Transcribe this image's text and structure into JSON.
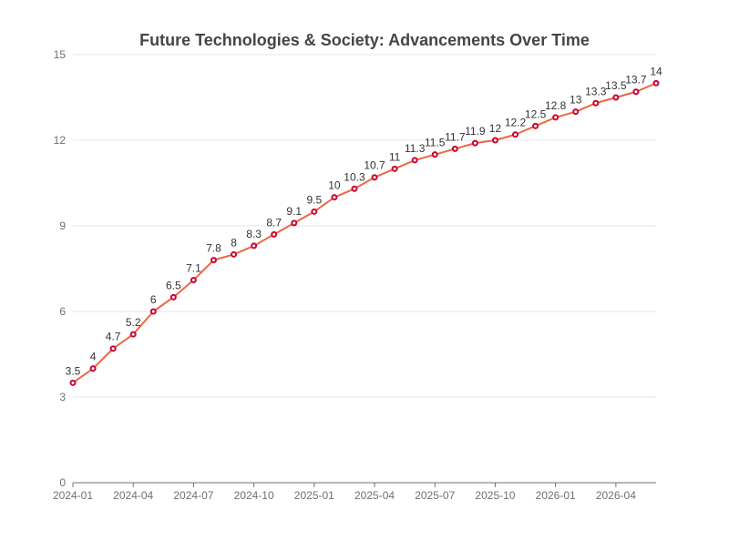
{
  "chart_data": {
    "type": "line",
    "title": "Future Technologies & Society: Advancements Over Time",
    "xlabel": "",
    "ylabel": "",
    "x": [
      "2024-01",
      "2024-02",
      "2024-03",
      "2024-04",
      "2024-05",
      "2024-06",
      "2024-07",
      "2024-08",
      "2024-09",
      "2024-10",
      "2024-11",
      "2024-12",
      "2025-01",
      "2025-02",
      "2025-03",
      "2025-04",
      "2025-05",
      "2025-06",
      "2025-07",
      "2025-08",
      "2025-09",
      "2025-10",
      "2025-11",
      "2025-12",
      "2026-01",
      "2026-02",
      "2026-03",
      "2026-04",
      "2026-05",
      "2026-06"
    ],
    "x_tick_labels": [
      "2024-01",
      "2024-04",
      "2024-07",
      "2024-10",
      "2025-01",
      "2025-04",
      "2025-07",
      "2025-10",
      "2026-01",
      "2026-04"
    ],
    "series": [
      {
        "values": [
          3.5,
          4,
          4.7,
          5.2,
          6,
          6.5,
          7.1,
          7.8,
          8,
          8.3,
          8.7,
          9.1,
          9.5,
          10,
          10.3,
          10.7,
          11,
          11.3,
          11.5,
          11.7,
          11.9,
          12,
          12.2,
          12.5,
          12.8,
          13,
          13.3,
          13.5,
          13.7,
          14
        ],
        "color": "#ee6644",
        "marker_color": "#cc0033"
      }
    ],
    "ylim": [
      0,
      15
    ],
    "y_ticks": [
      0,
      3,
      6,
      9,
      12,
      15
    ],
    "grid": true,
    "legend": "none",
    "data_labels": true
  }
}
